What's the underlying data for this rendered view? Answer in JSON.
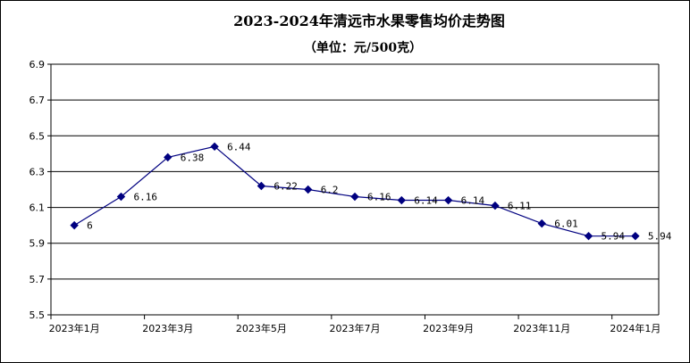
{
  "chart_data": {
    "type": "line",
    "title": "2023-2024年清远市水果零售均价走势图",
    "subtitle": "（单位：元/500克）",
    "xlabel": "",
    "ylabel": "",
    "ylim": [
      5.5,
      6.9
    ],
    "yticks": [
      "5.5",
      "5.7",
      "5.9",
      "6.1",
      "6.3",
      "6.5",
      "6.7",
      "6.9"
    ],
    "grid": true,
    "legend": "none",
    "x_tick_labels": [
      "2023年1月",
      "2023年3月",
      "2023年5月",
      "2023年7月",
      "2023年9月",
      "2023年11月",
      "2024年1月"
    ],
    "categories": [
      "2023年1月",
      "2023年2月",
      "2023年3月",
      "2023年4月",
      "2023年5月",
      "2023年6月",
      "2023年7月",
      "2023年8月",
      "2023年9月",
      "2023年10月",
      "2023年11月",
      "2023年12月",
      "2024年1月"
    ],
    "values": [
      6,
      6.16,
      6.38,
      6.44,
      6.22,
      6.2,
      6.16,
      6.14,
      6.14,
      6.11,
      6.01,
      5.94,
      5.94
    ],
    "value_labels": [
      "6",
      "6.16",
      "6.38",
      "6.44",
      "6.22",
      "6.2",
      "6.16",
      "6.14",
      "6.14",
      "6.11",
      "6.01",
      "5.94",
      "5.94"
    ],
    "line_color": "#000080",
    "marker": "diamond"
  }
}
